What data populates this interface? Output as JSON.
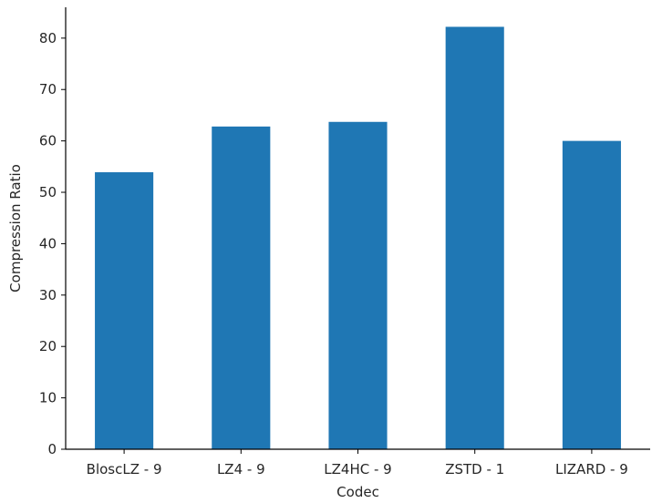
{
  "chart_data": {
    "type": "bar",
    "categories": [
      "BloscLZ - 9",
      "LZ4 - 9",
      "LZ4HC - 9",
      "ZSTD - 1",
      "LIZARD - 9"
    ],
    "values": [
      53.9,
      62.8,
      63.7,
      82.2,
      60.0
    ],
    "title": "",
    "xlabel": "Codec",
    "ylabel": "Compression Ratio",
    "ylim": [
      0,
      86
    ],
    "yticks": [
      0,
      10,
      20,
      30,
      40,
      50,
      60,
      70,
      80
    ],
    "bar_color": "#1f77b4",
    "grid": false,
    "legend": "none"
  }
}
